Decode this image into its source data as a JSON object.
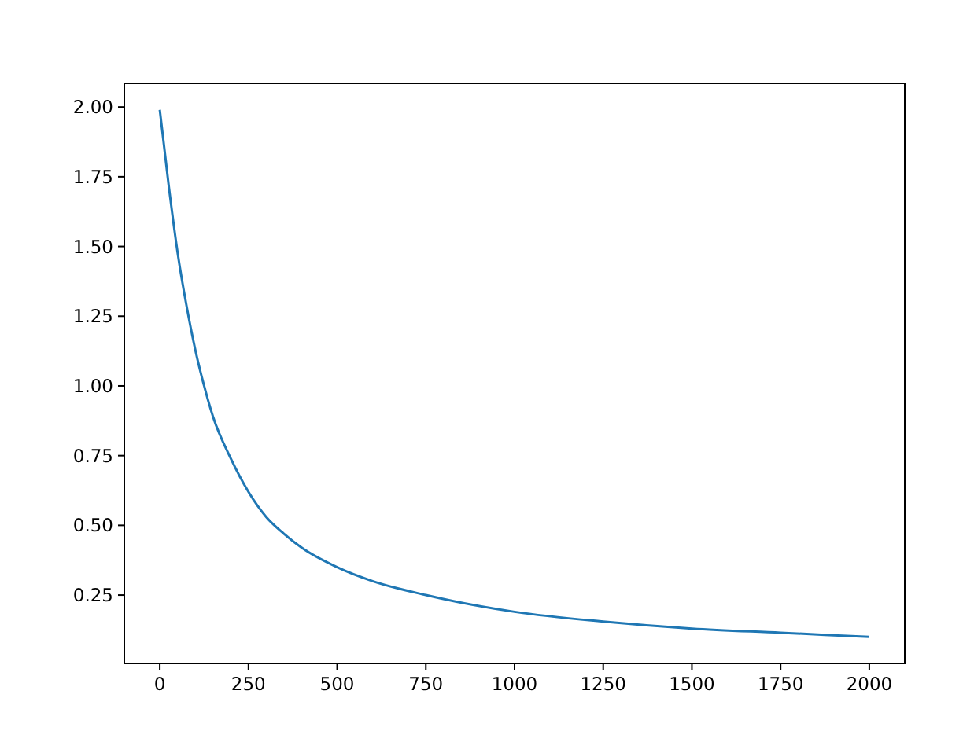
{
  "chart_data": {
    "type": "line",
    "x": [
      0,
      25,
      50,
      75,
      100,
      125,
      150,
      200,
      250,
      300,
      350,
      400,
      500,
      600,
      750,
      1000,
      1250,
      1500,
      1750,
      2000
    ],
    "series": [
      {
        "color": "#1f77b4",
        "values": [
          1.99,
          1.72,
          1.48,
          1.29,
          1.13,
          1.0,
          0.89,
          0.74,
          0.62,
          0.53,
          0.47,
          0.42,
          0.35,
          0.3,
          0.25,
          0.19,
          0.155,
          0.13,
          0.115,
          0.1
        ]
      }
    ],
    "xlim": [
      -100,
      2100
    ],
    "ylim": [
      0.005,
      2.085
    ],
    "xticks": [
      0,
      250,
      500,
      750,
      1000,
      1250,
      1500,
      1750,
      2000
    ],
    "yticks": [
      {
        "value": 0.25,
        "label": "0.25"
      },
      {
        "value": 0.5,
        "label": "0.50"
      },
      {
        "value": 0.75,
        "label": "0.75"
      },
      {
        "value": 1,
        "label": "1.00"
      },
      {
        "value": 1.25,
        "label": "1.25"
      },
      {
        "value": 1.5,
        "label": "1.50"
      },
      {
        "value": 1.75,
        "label": "1.75"
      },
      {
        "value": 2,
        "label": "2.00"
      }
    ],
    "grid": false,
    "marker": "none",
    "line_style": "solid"
  }
}
